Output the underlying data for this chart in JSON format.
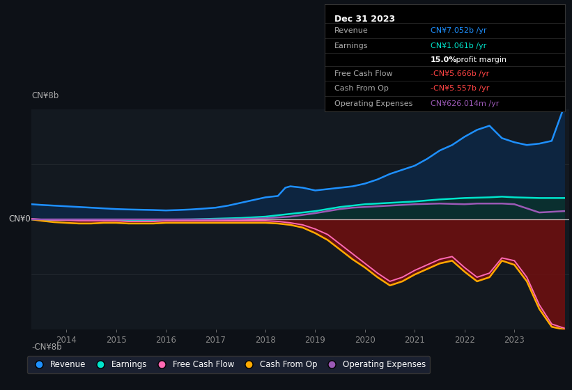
{
  "background_color": "#0d1117",
  "plot_bg_color": "#131920",
  "revenue_color": "#1e90ff",
  "earnings_color": "#00e5cc",
  "fcf_color": "#ff69b4",
  "cashop_color": "#ffaa00",
  "opex_color": "#9b59b6",
  "ylim": [
    -8,
    8
  ],
  "xlim_start": 2013.3,
  "xlim_end": 2024.1,
  "xticks": [
    2014,
    2015,
    2016,
    2017,
    2018,
    2019,
    2020,
    2021,
    2022,
    2023
  ],
  "ylabel": "CN¥8b",
  "ylabel_neg": "-CN¥8b",
  "y0_label": "CN¥0",
  "revenue_data_x": [
    2013.3,
    2013.5,
    2013.75,
    2014.0,
    2014.25,
    2014.5,
    2014.75,
    2015.0,
    2015.25,
    2015.5,
    2015.75,
    2016.0,
    2016.25,
    2016.5,
    2016.75,
    2017.0,
    2017.25,
    2017.5,
    2017.75,
    2018.0,
    2018.25,
    2018.4,
    2018.5,
    2018.75,
    2019.0,
    2019.25,
    2019.5,
    2019.75,
    2020.0,
    2020.25,
    2020.5,
    2020.75,
    2021.0,
    2021.25,
    2021.5,
    2021.75,
    2022.0,
    2022.25,
    2022.5,
    2022.75,
    2023.0,
    2023.25,
    2023.5,
    2023.75,
    2024.0
  ],
  "revenue_data_y": [
    1.1,
    1.05,
    1.0,
    0.95,
    0.9,
    0.85,
    0.8,
    0.75,
    0.72,
    0.7,
    0.68,
    0.65,
    0.68,
    0.72,
    0.78,
    0.85,
    1.0,
    1.2,
    1.4,
    1.6,
    1.7,
    2.3,
    2.4,
    2.3,
    2.1,
    2.2,
    2.3,
    2.4,
    2.6,
    2.9,
    3.3,
    3.6,
    3.9,
    4.4,
    5.0,
    5.4,
    6.0,
    6.5,
    6.8,
    5.9,
    5.6,
    5.4,
    5.5,
    5.7,
    8.2
  ],
  "earnings_data_x": [
    2013.3,
    2013.75,
    2014.0,
    2014.5,
    2015.0,
    2015.5,
    2016.0,
    2016.5,
    2017.0,
    2017.5,
    2018.0,
    2018.5,
    2019.0,
    2019.5,
    2020.0,
    2020.5,
    2021.0,
    2021.5,
    2022.0,
    2022.5,
    2022.75,
    2023.0,
    2023.5,
    2024.0
  ],
  "earnings_data_y": [
    0.0,
    -0.05,
    -0.05,
    -0.05,
    -0.05,
    -0.05,
    -0.02,
    0.0,
    0.05,
    0.1,
    0.2,
    0.4,
    0.6,
    0.9,
    1.1,
    1.2,
    1.3,
    1.45,
    1.55,
    1.6,
    1.65,
    1.6,
    1.55,
    1.55
  ],
  "cashop_data_x": [
    2013.3,
    2013.5,
    2013.75,
    2014.0,
    2014.25,
    2014.5,
    2014.75,
    2015.0,
    2015.25,
    2015.5,
    2015.75,
    2016.0,
    2016.25,
    2016.5,
    2016.75,
    2017.0,
    2017.25,
    2017.5,
    2017.75,
    2018.0,
    2018.25,
    2018.5,
    2018.75,
    2019.0,
    2019.25,
    2019.5,
    2019.75,
    2020.0,
    2020.25,
    2020.5,
    2020.75,
    2021.0,
    2021.25,
    2021.5,
    2021.75,
    2022.0,
    2022.25,
    2022.5,
    2022.75,
    2023.0,
    2023.25,
    2023.5,
    2023.75,
    2024.0
  ],
  "cashop_data_y": [
    0.0,
    -0.1,
    -0.2,
    -0.25,
    -0.3,
    -0.3,
    -0.25,
    -0.25,
    -0.3,
    -0.3,
    -0.3,
    -0.25,
    -0.25,
    -0.25,
    -0.25,
    -0.25,
    -0.25,
    -0.25,
    -0.25,
    -0.25,
    -0.3,
    -0.4,
    -0.6,
    -1.0,
    -1.5,
    -2.2,
    -2.9,
    -3.5,
    -4.2,
    -4.8,
    -4.5,
    -4.0,
    -3.6,
    -3.2,
    -3.0,
    -3.8,
    -4.5,
    -4.2,
    -3.0,
    -3.3,
    -4.5,
    -6.5,
    -7.8,
    -8.0
  ],
  "fcf_data_x": [
    2013.3,
    2013.5,
    2013.75,
    2014.0,
    2014.25,
    2014.5,
    2014.75,
    2015.0,
    2015.25,
    2015.5,
    2015.75,
    2016.0,
    2016.25,
    2016.5,
    2016.75,
    2017.0,
    2017.25,
    2017.5,
    2017.75,
    2018.0,
    2018.25,
    2018.5,
    2018.75,
    2019.0,
    2019.25,
    2019.5,
    2019.75,
    2020.0,
    2020.25,
    2020.5,
    2020.75,
    2021.0,
    2021.25,
    2021.5,
    2021.75,
    2022.0,
    2022.25,
    2022.5,
    2022.75,
    2023.0,
    2023.25,
    2023.5,
    2023.75,
    2024.0
  ],
  "fcf_data_y": [
    0.05,
    0.0,
    -0.05,
    -0.05,
    -0.1,
    -0.1,
    -0.1,
    -0.1,
    -0.15,
    -0.15,
    -0.15,
    -0.1,
    -0.1,
    -0.1,
    -0.1,
    -0.1,
    -0.1,
    -0.1,
    -0.1,
    -0.1,
    -0.15,
    -0.25,
    -0.4,
    -0.7,
    -1.1,
    -1.8,
    -2.5,
    -3.2,
    -3.9,
    -4.5,
    -4.2,
    -3.7,
    -3.3,
    -2.9,
    -2.7,
    -3.5,
    -4.2,
    -3.9,
    -2.8,
    -3.0,
    -4.2,
    -6.2,
    -7.6,
    -7.9
  ],
  "opex_data_x": [
    2013.3,
    2013.75,
    2014.0,
    2014.5,
    2015.0,
    2015.5,
    2016.0,
    2016.5,
    2017.0,
    2017.5,
    2018.0,
    2018.5,
    2019.0,
    2019.25,
    2019.5,
    2019.75,
    2020.0,
    2020.5,
    2021.0,
    2021.5,
    2022.0,
    2022.25,
    2022.5,
    2022.75,
    2023.0,
    2023.25,
    2023.5,
    2024.0
  ],
  "opex_data_y": [
    0.0,
    0.0,
    0.0,
    0.0,
    0.0,
    0.0,
    0.0,
    0.0,
    0.0,
    0.02,
    0.08,
    0.2,
    0.45,
    0.6,
    0.75,
    0.85,
    0.9,
    1.0,
    1.1,
    1.15,
    1.1,
    1.15,
    1.15,
    1.15,
    1.1,
    0.8,
    0.5,
    0.6
  ],
  "legend_items": [
    {
      "label": "Revenue",
      "color": "#1e90ff"
    },
    {
      "label": "Earnings",
      "color": "#00e5cc"
    },
    {
      "label": "Free Cash Flow",
      "color": "#ff69b4"
    },
    {
      "label": "Cash From Op",
      "color": "#ffaa00"
    },
    {
      "label": "Operating Expenses",
      "color": "#9b59b6"
    }
  ],
  "infobox": {
    "title": "Dec 31 2023",
    "rows": [
      {
        "label": "Revenue",
        "value": "CN¥7.052b /yr",
        "color": "#1e90ff"
      },
      {
        "label": "Earnings",
        "value": "CN¥1.061b /yr",
        "color": "#00e5cc"
      },
      {
        "label": "",
        "value": "15.0% profit margin",
        "color": "white",
        "bold_part": "15.0%"
      },
      {
        "label": "Free Cash Flow",
        "value": "-CN¥5.666b /yr",
        "color": "#ff4444"
      },
      {
        "label": "Cash From Op",
        "value": "-CN¥5.557b /yr",
        "color": "#ff4444"
      },
      {
        "label": "Operating Expenses",
        "value": "CN¥626.014m /yr",
        "color": "#9b59b6"
      }
    ]
  }
}
